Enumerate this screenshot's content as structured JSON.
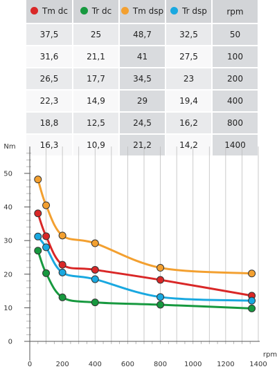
{
  "chart_data": {
    "type": "line",
    "x": [
      50,
      100,
      200,
      400,
      800,
      1400
    ],
    "series": [
      {
        "name": "Tm dc",
        "color": "#d92727",
        "values": [
          37.5,
          31.6,
          26.5,
          22.3,
          18.8,
          16.3
        ]
      },
      {
        "name": "Tr dc",
        "color": "#17993f",
        "values": [
          25,
          21.1,
          17.7,
          14.9,
          12.5,
          10.9
        ]
      },
      {
        "name": "Tm dsp",
        "color": "#f3a030",
        "values": [
          48.7,
          41,
          34.5,
          29,
          24.5,
          21.2
        ]
      },
      {
        "name": "Tr dsp",
        "color": "#19a8e0",
        "values": [
          32.5,
          27.5,
          23,
          19.4,
          16.2,
          14.2
        ]
      }
    ],
    "plotted_points": [
      [
        [
          50,
          38.1
        ],
        [
          100,
          31.3
        ],
        [
          200,
          22.8
        ],
        [
          400,
          21.3
        ],
        [
          800,
          18.3
        ],
        [
          1360,
          13.6
        ]
      ],
      [
        [
          50,
          27
        ],
        [
          100,
          20.3
        ],
        [
          200,
          13.1
        ],
        [
          400,
          11.6
        ],
        [
          800,
          10.9
        ],
        [
          1360,
          9.8
        ]
      ],
      [
        [
          50,
          48.2
        ],
        [
          100,
          40.5
        ],
        [
          200,
          31.5
        ],
        [
          400,
          29.2
        ],
        [
          800,
          21.9
        ],
        [
          1360,
          20.2
        ]
      ],
      [
        [
          50,
          31.2
        ],
        [
          100,
          28
        ],
        [
          200,
          20.5
        ],
        [
          400,
          18.5
        ],
        [
          800,
          13.2
        ],
        [
          1360,
          12.1
        ]
      ]
    ],
    "xlabel": "rpm",
    "ylabel": "Nm",
    "xlim": [
      0,
      1400
    ],
    "ylim": [
      0,
      58
    ],
    "xticks": [
      0,
      200,
      400,
      600,
      800,
      1000,
      1200,
      1400
    ],
    "yticks": [
      0,
      10,
      20,
      30,
      40,
      50
    ],
    "grid": true
  },
  "table": {
    "headers": [
      "Tm dc",
      "Tr dc",
      "Tm dsp",
      "Tr dsp",
      "rpm"
    ],
    "rows": [
      [
        "37,5",
        "25",
        "48,7",
        "32,5",
        "50"
      ],
      [
        "31,6",
        "21,1",
        "41",
        "27,5",
        "100"
      ],
      [
        "26,5",
        "17,7",
        "34,5",
        "23",
        "200"
      ],
      [
        "22,3",
        "14,9",
        "29",
        "19,4",
        "400"
      ],
      [
        "18,8",
        "12,5",
        "24,5",
        "16,2",
        "800"
      ],
      [
        "16,3",
        "10,9",
        "21,2",
        "14,2",
        "1400"
      ]
    ]
  }
}
